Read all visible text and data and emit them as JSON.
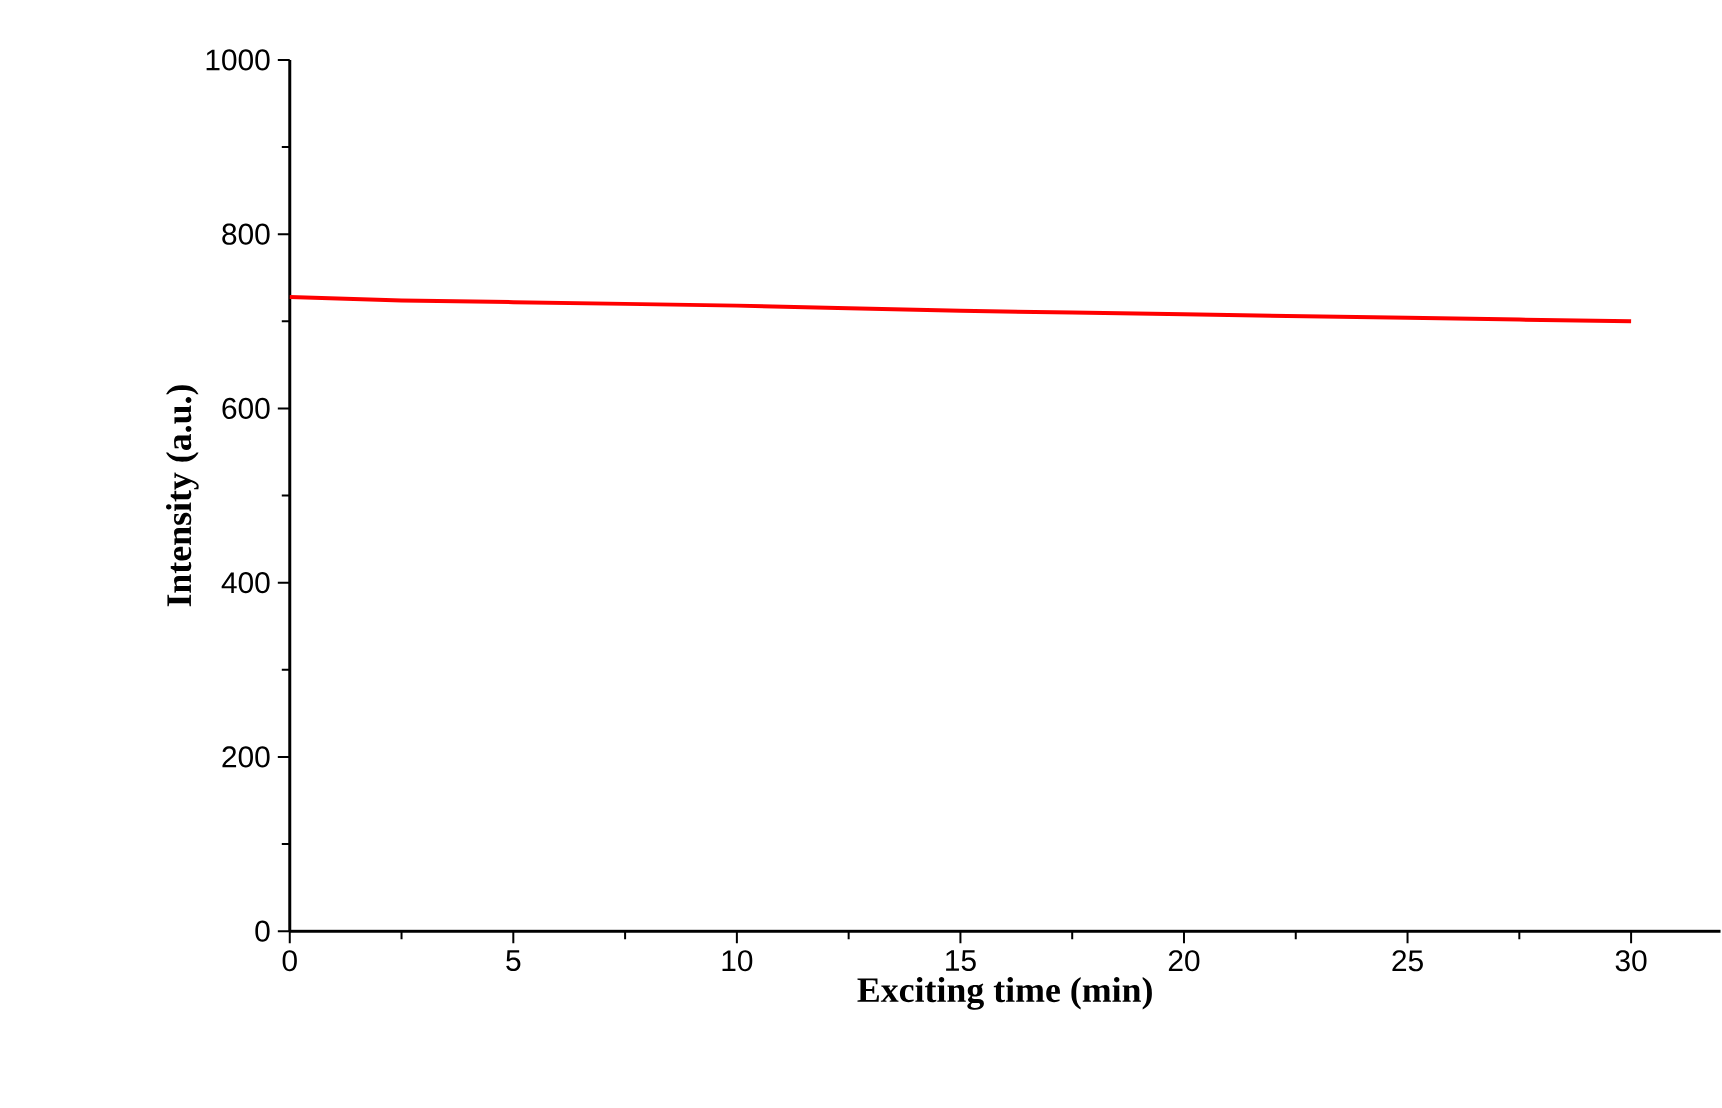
{
  "chart_data": {
    "type": "line",
    "xlabel": "Exciting time (min)",
    "ylabel": "Intensity (a.u.)",
    "x": [
      0,
      2.5,
      5,
      7.5,
      10,
      12.5,
      15,
      17.5,
      20,
      22.5,
      25,
      27.5,
      30
    ],
    "series": [
      {
        "color": "#ff0000",
        "values": [
          728,
          724,
          722,
          720,
          718,
          715,
          712,
          710,
          708,
          706,
          704,
          702,
          700
        ]
      }
    ],
    "xlim": [
      0,
      32
    ],
    "ylim": [
      0,
      1000
    ],
    "xticks": [
      0,
      5,
      10,
      15,
      20,
      25,
      30
    ],
    "yticks": [
      0,
      200,
      400,
      600,
      800,
      1000
    ],
    "grid": false,
    "marker": "none",
    "line_style": "solid"
  }
}
